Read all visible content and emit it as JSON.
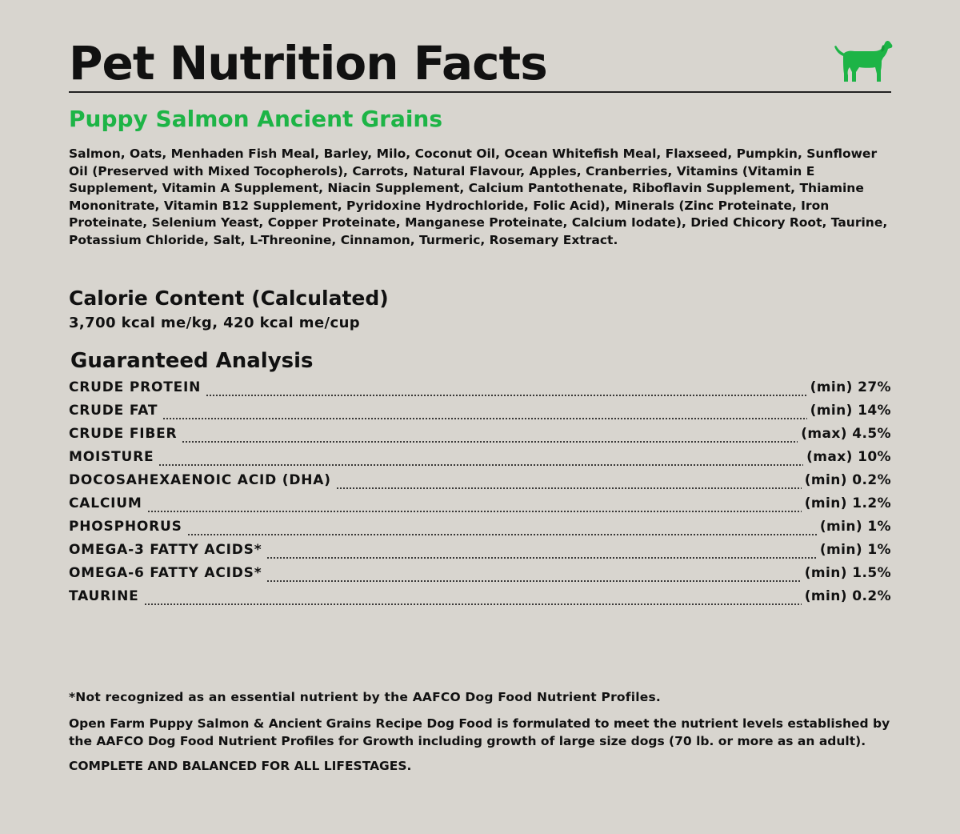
{
  "header": {
    "title": "Pet Nutrition Facts",
    "logo_icon": "dog-icon",
    "brand_color": "#1db446"
  },
  "product": {
    "name": "Puppy Salmon Ancient Grains",
    "ingredients": "Salmon, Oats, Menhaden Fish Meal, Barley, Milo, Coconut Oil, Ocean Whitefish Meal, Flaxseed, Pumpkin, Sunflower Oil (Preserved with Mixed Tocopherols), Carrots, Natural Flavour, Apples, Cranberries, Vitamins (Vitamin E Supplement, Vitamin A Supplement, Niacin Supplement, Calcium Pantothenate, Riboflavin Supplement, Thiamine Mononitrate, Vitamin B12 Supplement, Pyridoxine Hydrochloride, Folic Acid), Minerals (Zinc Proteinate, Iron Proteinate, Selenium Yeast, Copper Proteinate, Manganese Proteinate, Calcium Iodate), Dried Chicory Root, Taurine, Potassium Chloride, Salt, L-Threonine, Cinnamon, Turmeric, Rosemary Extract."
  },
  "calorie": {
    "heading": "Calorie Content (Calculated)",
    "value": "3,700 kcal me/kg, 420 kcal me/cup"
  },
  "analysis": {
    "heading": "Guaranteed Analysis",
    "rows": [
      {
        "name": "CRUDE PROTEIN",
        "value": "(min) 27%"
      },
      {
        "name": "CRUDE FAT",
        "value": "(min) 14%"
      },
      {
        "name": "CRUDE FIBER",
        "value": "(max) 4.5%"
      },
      {
        "name": "MOISTURE",
        "value": "(max) 10%"
      },
      {
        "name": "DOCOSAHEXAENOIC ACID (DHA)",
        "value": "(min) 0.2%"
      },
      {
        "name": "CALCIUM",
        "value": "(min) 1.2%"
      },
      {
        "name": "PHOSPHORUS",
        "value": "(min) 1%"
      },
      {
        "name": "OMEGA-3 FATTY ACIDS*",
        "value": "(min) 1%"
      },
      {
        "name": "OMEGA-6 FATTY ACIDS*",
        "value": "(min) 1.5%"
      },
      {
        "name": "TAURINE",
        "value": "(min) 0.2%"
      }
    ]
  },
  "footer": {
    "footnote": "*Not recognized as an essential nutrient by the AAFCO Dog Food Nutrient Profiles.",
    "statement": "Open Farm Puppy Salmon & Ancient Grains Recipe Dog Food is formulated to meet the nutrient levels established by the AAFCO Dog Food Nutrient Profiles for Growth including growth of large size dogs (70 lb. or more as an adult).",
    "complete": "COMPLETE AND BALANCED FOR ALL LIFESTAGES."
  }
}
